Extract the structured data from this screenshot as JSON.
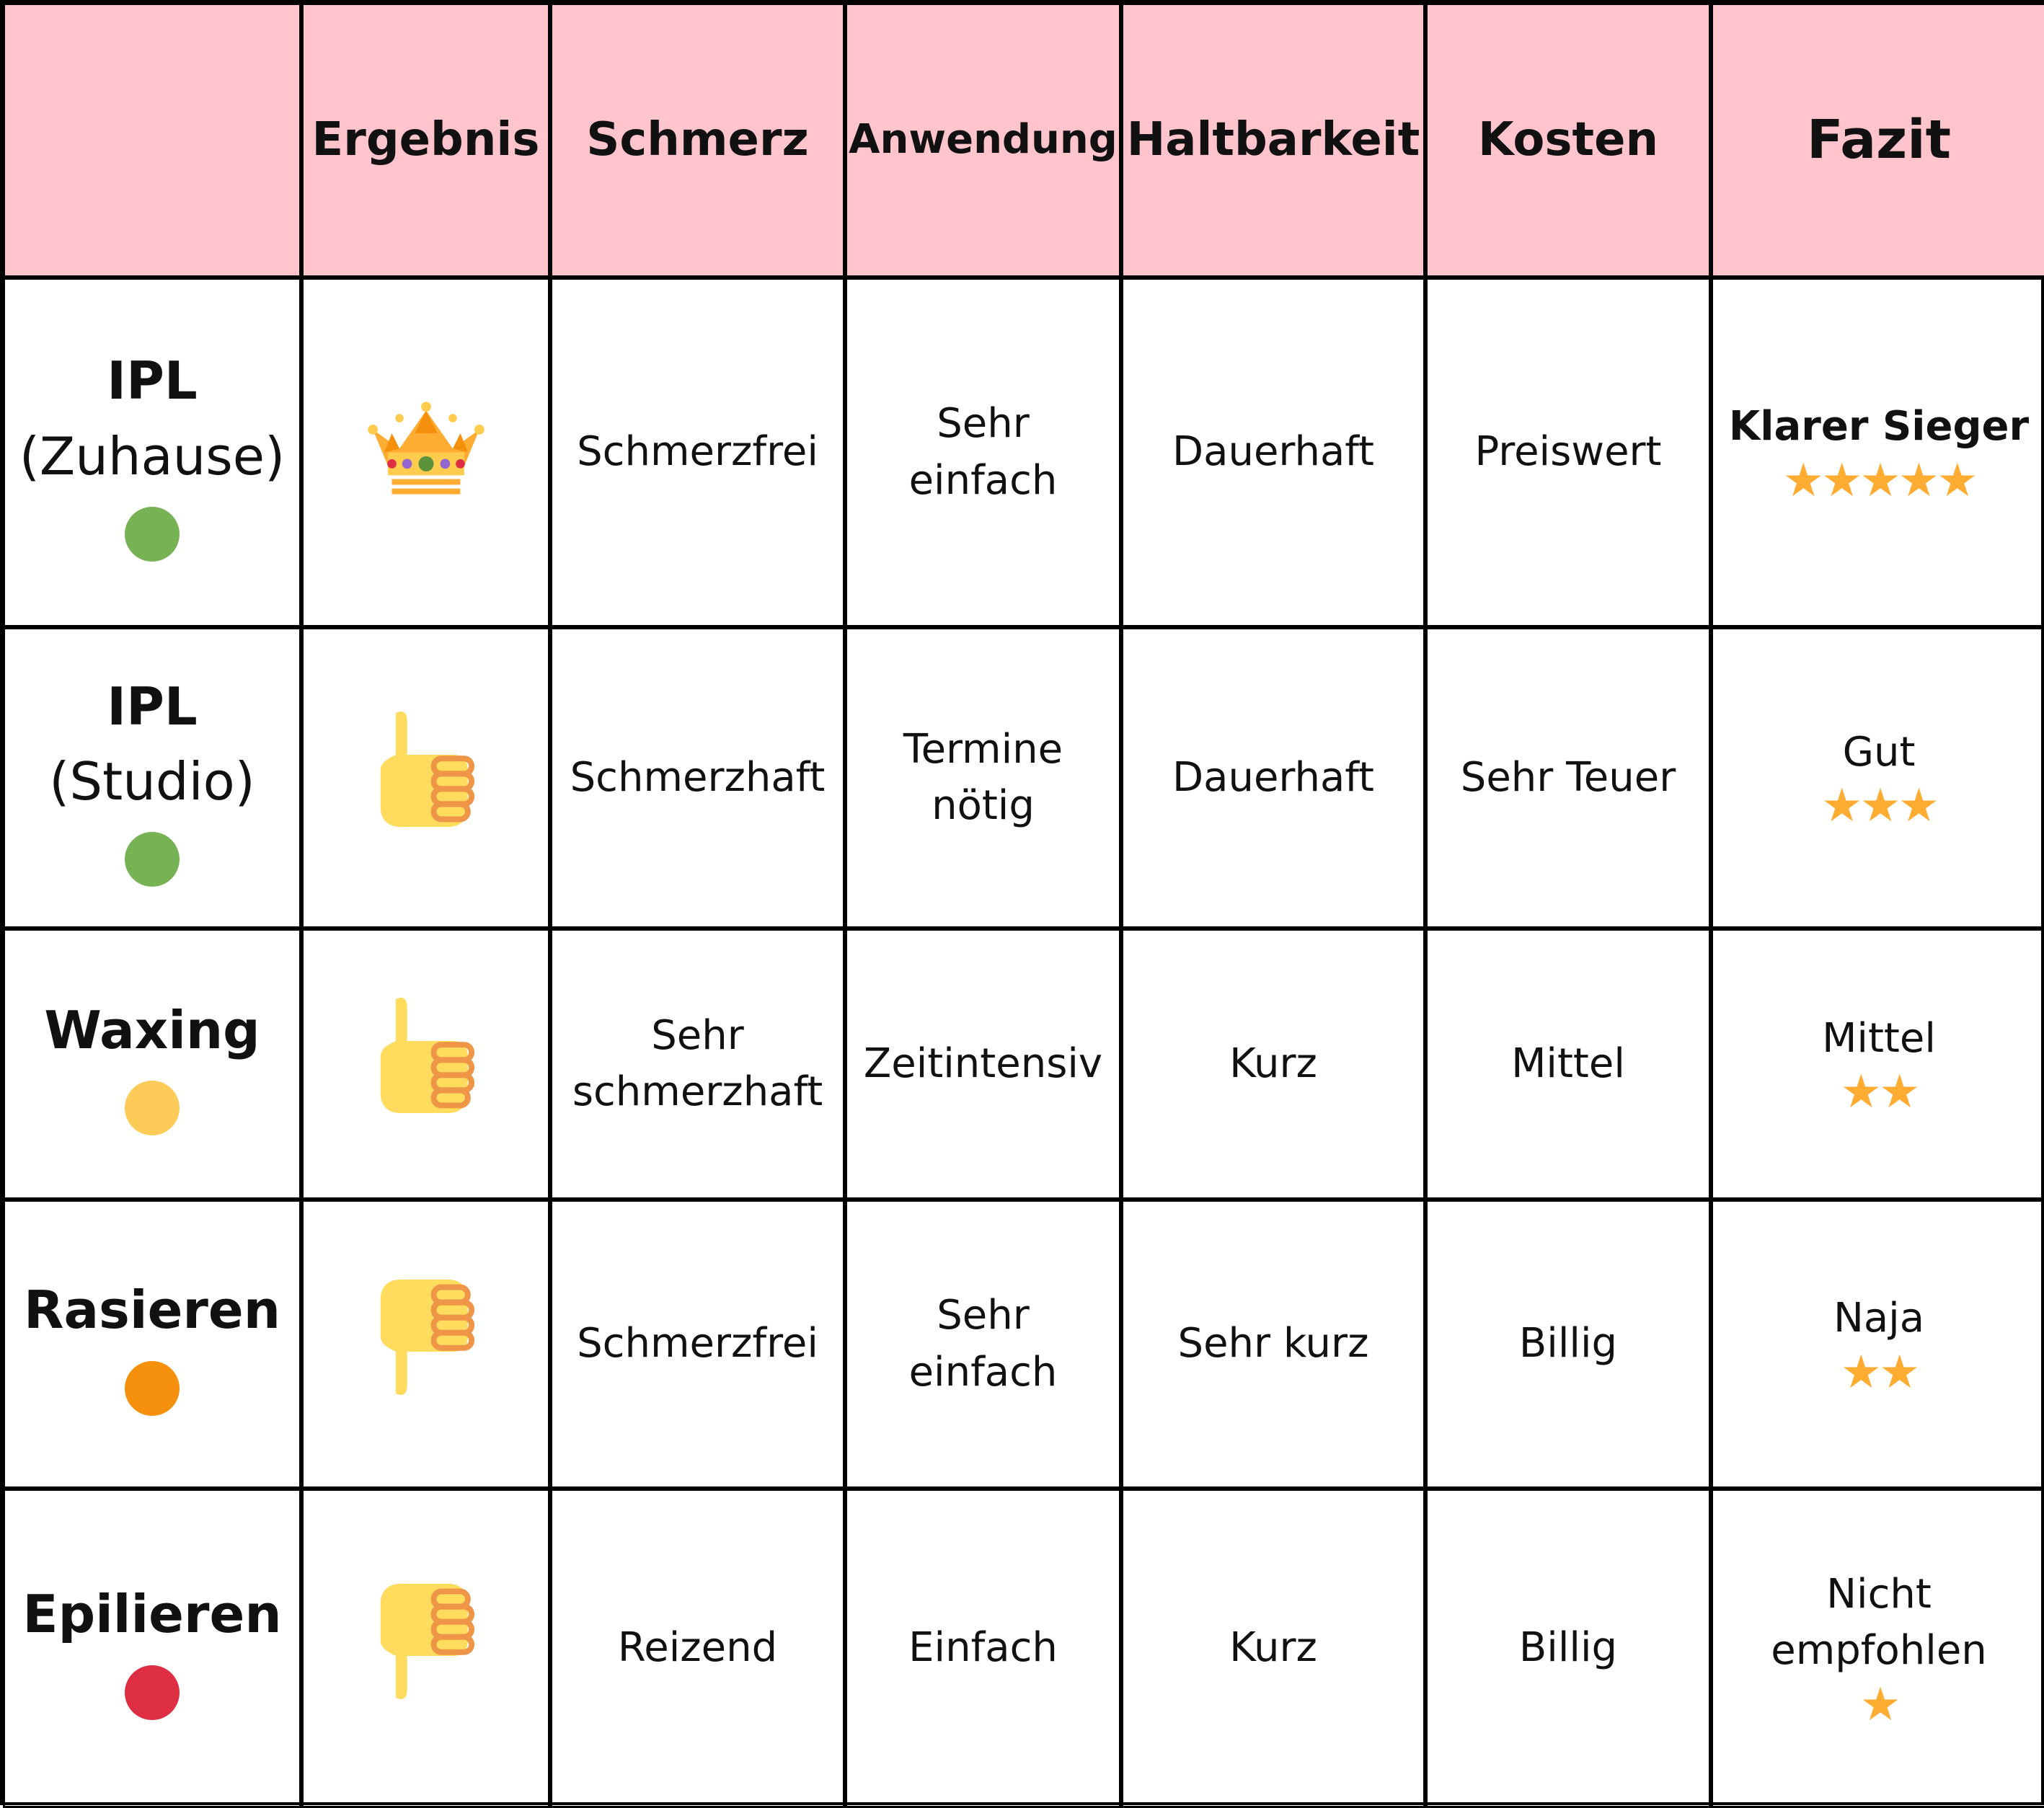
{
  "headers": [
    "",
    "Ergebnis",
    "Schmerz",
    "Anwendung",
    "Haltbarkeit",
    "Kosten",
    "Fazit"
  ],
  "colors": {
    "header_bg": "#ffc4cc",
    "star": "#ffac33"
  },
  "rows": [
    {
      "name": "IPL",
      "sub": "(Zuhause)",
      "dot": "#77b255",
      "result_icon": "crown-icon",
      "pain": [
        "Schmerzfrei"
      ],
      "use": [
        "Sehr",
        "einfach"
      ],
      "dur": "Dauerhaft",
      "cost": "Preiswert",
      "verdict": [
        "Klarer Sieger"
      ],
      "stars": "★★★★★",
      "rating": 5
    },
    {
      "name": "IPL",
      "sub": "(Studio)",
      "dot": "#77b255",
      "result_icon": "thumbs-up-icon",
      "pain": [
        "Schmerzhaft"
      ],
      "use": [
        "Termine",
        "nötig"
      ],
      "dur": "Dauerhaft",
      "cost": "Sehr Teuer",
      "verdict": [
        "Gut"
      ],
      "stars": "★★★",
      "rating": 3
    },
    {
      "name": "Waxing",
      "sub": null,
      "dot": "#fdcb58",
      "result_icon": "thumbs-up-icon",
      "pain": [
        "Sehr",
        "schmerzhaft"
      ],
      "use": [
        "Zeitintensiv"
      ],
      "dur": "Kurz",
      "cost": "Mittel",
      "verdict": [
        "Mittel"
      ],
      "stars": "★★",
      "rating": 2
    },
    {
      "name": "Rasieren",
      "sub": null,
      "dot": "#f4900c",
      "result_icon": "thumbs-down-icon",
      "pain": [
        "Schmerzfrei"
      ],
      "use": [
        "Sehr",
        "einfach"
      ],
      "dur": "Sehr kurz",
      "cost": "Billig",
      "verdict": [
        "Naja"
      ],
      "stars": "★★",
      "rating": 2
    },
    {
      "name": "Epilieren",
      "sub": null,
      "dot": "#dd2e44",
      "result_icon": "thumbs-down-icon",
      "pain": [
        "Reizend"
      ],
      "use": [
        "Einfach"
      ],
      "dur": "Kurz",
      "cost": "Billig",
      "verdict": [
        "Nicht",
        "empfohlen"
      ],
      "stars": "★",
      "rating": 1
    }
  ]
}
